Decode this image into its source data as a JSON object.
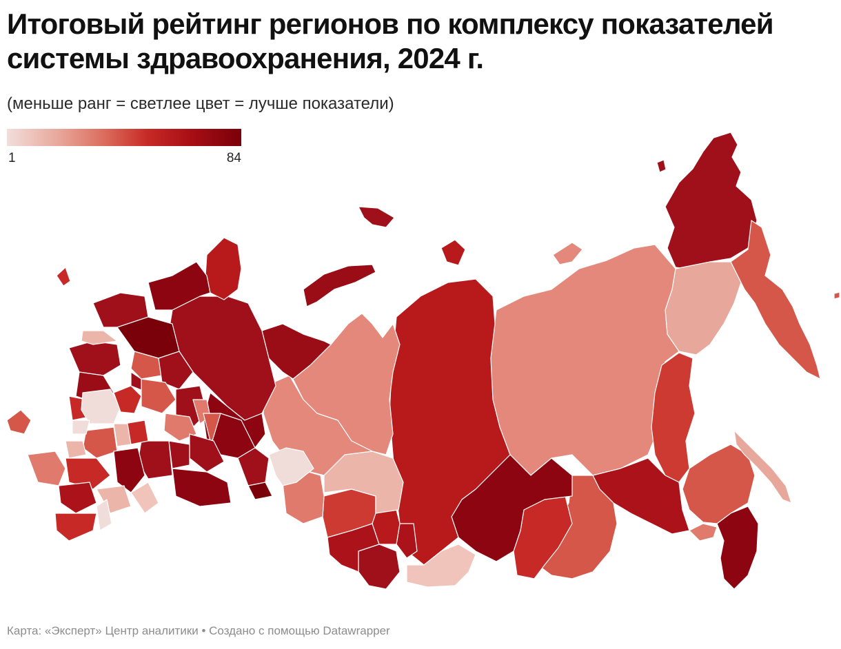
{
  "title": "Итоговый рейтинг регионов по комплексу показателей системы здравоохранения, 2024 г.",
  "subtitle": "(меньше ранг = светлее цвет = лучше показатели)",
  "legend": {
    "min_label": "1",
    "max_label": "84",
    "min_value": 1,
    "max_value": 84,
    "colors": [
      "#f2dedb",
      "#e8a79b",
      "#db6b5b",
      "#c72a26",
      "#a80f15",
      "#7a0009"
    ]
  },
  "footer": {
    "credit": "Карта: «Эксперт» Центр аналитики • Создано с помощью Datawrapper"
  }
}
